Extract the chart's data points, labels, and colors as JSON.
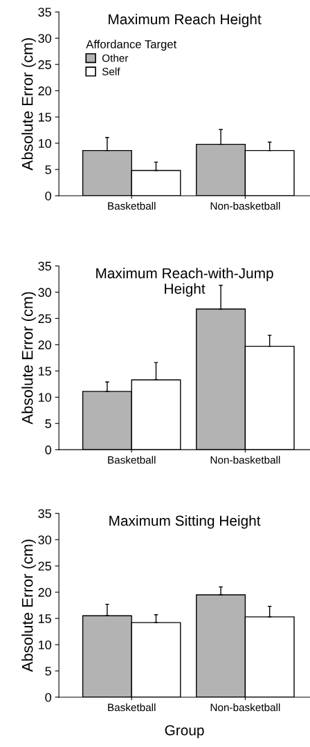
{
  "chart_data": [
    {
      "type": "bar",
      "title": "Maximum Reach Height",
      "ylabel": "Absolute Error (cm)",
      "categories": [
        "Basketball",
        "Non-basketball"
      ],
      "legend_title": "Affordance Target",
      "legend": "top left",
      "ylim": [
        0,
        35
      ],
      "yticks": [
        0,
        5,
        10,
        15,
        20,
        25,
        30,
        35
      ],
      "grid": false,
      "series": [
        {
          "name": "Other",
          "color": "#b3b3b3",
          "values": [
            8.6,
            9.8
          ],
          "errors": [
            [
              8.6,
              11.1
            ],
            [
              9.8,
              12.6
            ]
          ]
        },
        {
          "name": "Self",
          "color": "#ffffff",
          "values": [
            4.8,
            8.6
          ],
          "errors": [
            [
              4.8,
              6.4
            ],
            [
              8.6,
              10.2
            ]
          ]
        }
      ]
    },
    {
      "type": "bar",
      "title": "Maximum Reach-with-Jump\nHeight",
      "ylabel": "Absolute Error (cm)",
      "categories": [
        "Basketball",
        "Non-basketball"
      ],
      "ylim": [
        0,
        35
      ],
      "yticks": [
        0,
        5,
        10,
        15,
        20,
        25,
        30,
        35
      ],
      "grid": false,
      "series": [
        {
          "color": "#b3b3b3",
          "values": [
            11.1,
            26.8
          ],
          "errors": [
            [
              11.1,
              12.9
            ],
            [
              26.8,
              31.3
            ]
          ]
        },
        {
          "color": "#ffffff",
          "values": [
            13.3,
            19.7
          ],
          "errors": [
            [
              13.3,
              16.6
            ],
            [
              19.7,
              21.8
            ]
          ]
        }
      ]
    },
    {
      "type": "bar",
      "title": "Maximum Sitting Height",
      "ylabel": "Absolute Error (cm)",
      "xlabel": "Group",
      "categories": [
        "Basketball",
        "Non-basketball"
      ],
      "ylim": [
        0,
        35
      ],
      "yticks": [
        0,
        5,
        10,
        15,
        20,
        25,
        30,
        35
      ],
      "grid": false,
      "series": [
        {
          "color": "#b3b3b3",
          "values": [
            15.5,
            19.5
          ],
          "errors": [
            [
              15.5,
              17.7
            ],
            [
              19.5,
              21.0
            ]
          ]
        },
        {
          "color": "#ffffff",
          "values": [
            14.2,
            15.3
          ],
          "errors": [
            [
              14.2,
              15.7
            ],
            [
              15.3,
              17.3
            ]
          ]
        }
      ]
    }
  ]
}
